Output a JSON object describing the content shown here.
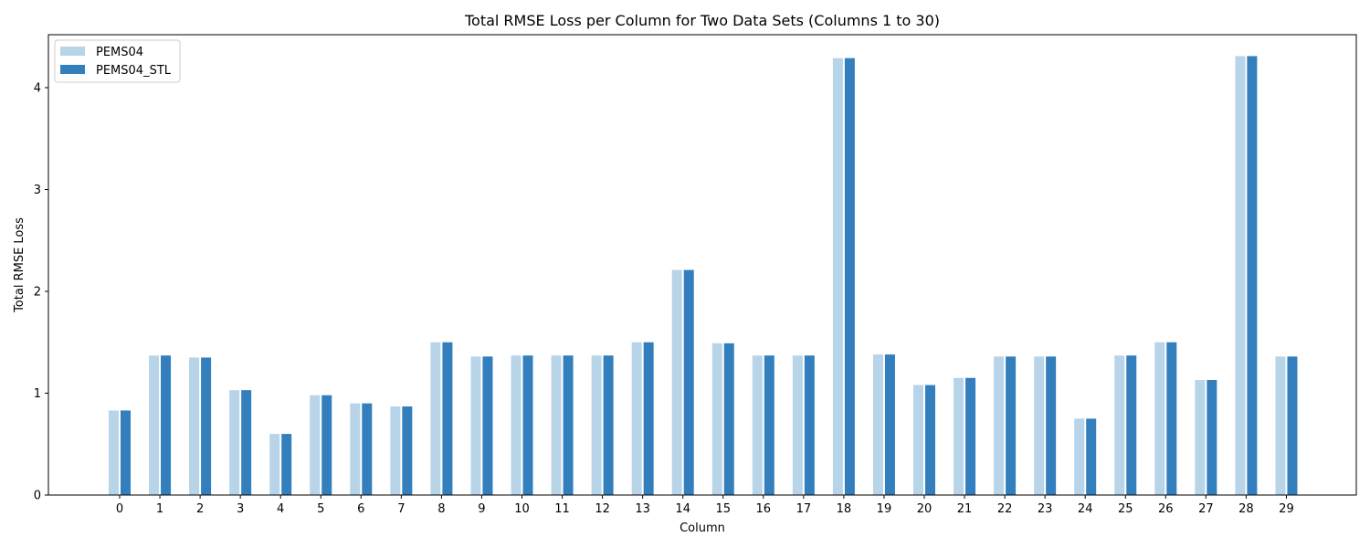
{
  "chart_data": {
    "type": "bar",
    "title": "Total RMSE Loss per Column for Two Data Sets (Columns 1 to 30)",
    "xlabel": "Column",
    "ylabel": "Total RMSE Loss",
    "categories": [
      "0",
      "1",
      "2",
      "3",
      "4",
      "5",
      "6",
      "7",
      "8",
      "9",
      "10",
      "11",
      "12",
      "13",
      "14",
      "15",
      "16",
      "17",
      "18",
      "19",
      "20",
      "21",
      "22",
      "23",
      "24",
      "25",
      "26",
      "27",
      "28",
      "29"
    ],
    "ylim": [
      0,
      4.52
    ],
    "yticks": [
      0,
      1,
      2,
      3,
      4
    ],
    "grid": false,
    "legend_position": "top-left",
    "series": [
      {
        "name": "PEMS04",
        "color": "#b8d4e8",
        "values": [
          0.83,
          1.37,
          1.35,
          1.03,
          0.6,
          0.98,
          0.9,
          0.87,
          1.5,
          1.36,
          1.37,
          1.37,
          1.37,
          1.5,
          2.21,
          1.49,
          1.37,
          1.37,
          4.29,
          1.38,
          1.08,
          1.15,
          1.36,
          1.36,
          0.75,
          1.37,
          1.5,
          1.13,
          4.31,
          1.36
        ]
      },
      {
        "name": "PEMS04_STL",
        "color": "#337fbd",
        "values": [
          0.83,
          1.37,
          1.35,
          1.03,
          0.6,
          0.98,
          0.9,
          0.87,
          1.5,
          1.36,
          1.37,
          1.37,
          1.37,
          1.5,
          2.21,
          1.49,
          1.37,
          1.37,
          4.29,
          1.38,
          1.08,
          1.15,
          1.36,
          1.36,
          0.75,
          1.37,
          1.5,
          1.13,
          4.31,
          1.36
        ]
      }
    ]
  }
}
